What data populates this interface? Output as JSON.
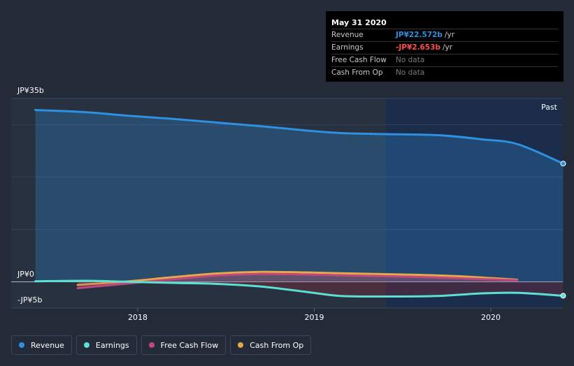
{
  "tooltip": {
    "date": "May 31 2020",
    "rows": [
      {
        "name": "Revenue",
        "value": "JP¥22.572b",
        "unit": "/yr",
        "color": "#2d90e0"
      },
      {
        "name": "Earnings",
        "value": "-JP¥2.653b",
        "unit": "/yr",
        "color": "#ff4d4d"
      },
      {
        "name": "Free Cash Flow",
        "value": "No data",
        "unit": ""
      },
      {
        "name": "Cash From Op",
        "value": "No data",
        "unit": ""
      }
    ]
  },
  "chart_data": {
    "type": "area",
    "ylim": [
      -5,
      35
    ],
    "y_tick_labels": [
      "JP¥35b",
      "JP¥0",
      "-JP¥5b"
    ],
    "x_tick_labels": [
      "2018",
      "2019",
      "2020"
    ],
    "past_label": "Past",
    "series": [
      {
        "name": "Revenue",
        "color": "#2d90e0",
        "x": [
          2017.42,
          2017.7,
          2017.95,
          2018.2,
          2018.45,
          2018.7,
          2018.95,
          2019.15,
          2019.4,
          2019.7,
          2019.95,
          2020.15,
          2020.41
        ],
        "y": [
          32.8,
          32.4,
          31.7,
          31.1,
          30.4,
          29.7,
          28.9,
          28.4,
          28.2,
          28.0,
          27.2,
          26.3,
          22.572
        ]
      },
      {
        "name": "Earnings",
        "color": "#5ce0d2",
        "x": [
          2017.42,
          2017.7,
          2017.95,
          2018.2,
          2018.45,
          2018.7,
          2018.95,
          2019.15,
          2019.4,
          2019.7,
          2019.95,
          2020.15,
          2020.41
        ],
        "y": [
          0.1,
          0.2,
          0.0,
          -0.2,
          -0.4,
          -0.9,
          -1.9,
          -2.7,
          -2.8,
          -2.7,
          -2.2,
          -2.1,
          -2.653
        ]
      },
      {
        "name": "Free Cash Flow",
        "color": "#c2477d",
        "x": [
          2017.66,
          2017.95,
          2018.2,
          2018.45,
          2018.7,
          2018.95,
          2019.2,
          2019.5,
          2019.8,
          2020.15
        ],
        "y": [
          -1.2,
          -0.3,
          0.5,
          1.2,
          1.5,
          1.4,
          1.2,
          1.0,
          0.7,
          0.3
        ]
      },
      {
        "name": "Cash From Op",
        "color": "#e5a84a",
        "x": [
          2017.66,
          2017.95,
          2018.2,
          2018.45,
          2018.7,
          2018.95,
          2019.2,
          2019.5,
          2019.8,
          2020.15
        ],
        "y": [
          -0.6,
          0.1,
          0.9,
          1.6,
          1.9,
          1.8,
          1.6,
          1.4,
          1.1,
          0.4
        ]
      }
    ],
    "legend": [
      "Revenue",
      "Earnings",
      "Free Cash Flow",
      "Cash From Op"
    ]
  }
}
